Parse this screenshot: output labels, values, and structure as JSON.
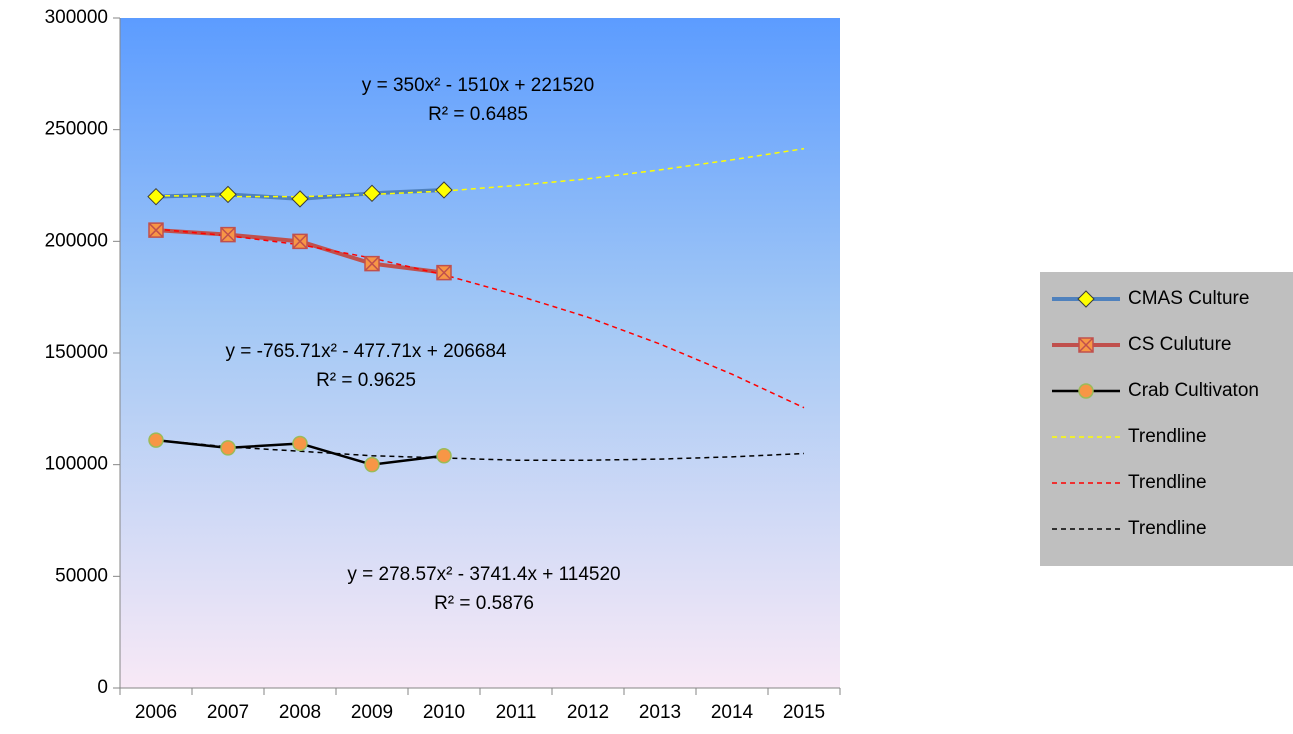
{
  "chart_data": {
    "type": "line",
    "categories": [
      "2006",
      "2007",
      "2008",
      "2009",
      "2010",
      "2011",
      "2012",
      "2013",
      "2014",
      "2015"
    ],
    "ylim": [
      0,
      300000
    ],
    "yticks": [
      0,
      50000,
      100000,
      150000,
      200000,
      250000,
      300000
    ],
    "series": [
      {
        "name": "CMAS Culture",
        "color": "#4f81bd",
        "marker": "diamond",
        "marker_color": "#ffff00",
        "dashed": false,
        "values": [
          220000,
          221000,
          219000,
          221500,
          223000,
          null,
          null,
          null,
          null,
          null
        ]
      },
      {
        "name": "CS Culuture",
        "color": "#c0504d",
        "marker": "star-square",
        "marker_color": "#f79646",
        "dashed": false,
        "values": [
          205000,
          203000,
          200000,
          190000,
          186000,
          null,
          null,
          null,
          null,
          null
        ]
      },
      {
        "name": "Crab Cultivaton",
        "color": "#000000",
        "marker": "circle",
        "marker_color": "#f79646",
        "dashed": false,
        "values": [
          111000,
          107500,
          109500,
          100000,
          104000,
          null,
          null,
          null,
          null,
          null
        ]
      },
      {
        "name": "Trendline",
        "color": "#ffff00",
        "dashed": true,
        "values": [
          220500,
          220000,
          220000,
          221000,
          222500,
          225000,
          228000,
          232000,
          236500,
          241500
        ]
      },
      {
        "name": "Trendline",
        "color": "#ff0000",
        "dashed": true,
        "values": [
          205500,
          202500,
          198500,
          192500,
          185000,
          176000,
          166000,
          154000,
          140500,
          125500
        ]
      },
      {
        "name": "Trendline",
        "color": "#000000",
        "dashed": true,
        "values": [
          111000,
          108000,
          106000,
          104000,
          103000,
          102000,
          102000,
          102500,
          103500,
          105000
        ]
      }
    ],
    "annotations": [
      "y = 350x² - 1510x + 221520",
      "R² = 0.6485",
      "y = -765.71x² - 477.71x + 206684",
      "R² = 0.9625",
      "y = 278.57x² - 3741.4x + 114520",
      "R² = 0.5876"
    ]
  }
}
